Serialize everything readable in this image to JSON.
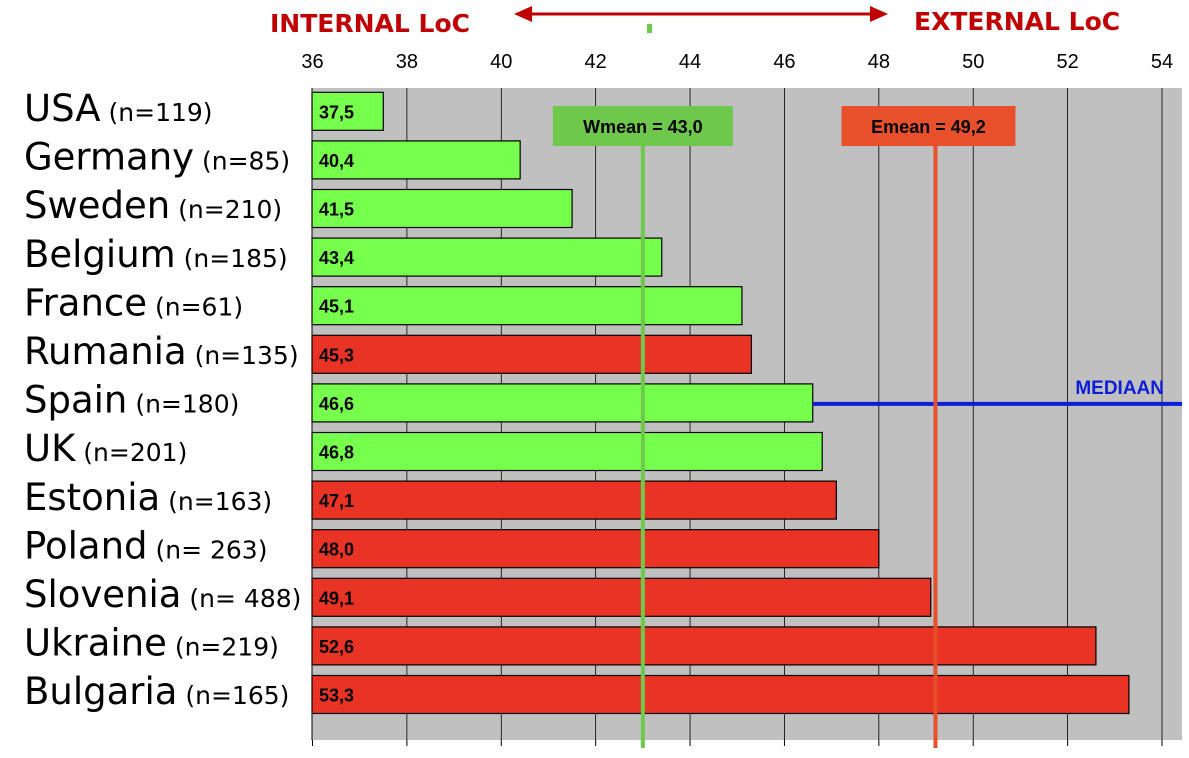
{
  "chart_data": {
    "type": "bar",
    "orientation": "horizontal",
    "categories": [
      "USA",
      "Germany",
      "Sweden",
      "Belgium",
      "France",
      "Rumania",
      "Spain",
      "UK",
      "Estonia",
      "Poland",
      "Slovenia",
      "Ukraine",
      "Bulgaria"
    ],
    "sample_sizes": [
      "(n=119)",
      "(n=85)",
      "(n=210)",
      "(n=185)",
      "(n=61)",
      "(n=135)",
      "(n=180)",
      "(n=201)",
      "(n=163)",
      "(n= 263)",
      "(n= 488)",
      "(n=219)",
      "(n=165)"
    ],
    "values": [
      37.5,
      40.4,
      41.5,
      43.4,
      45.1,
      45.3,
      46.6,
      46.8,
      47.1,
      48.0,
      49.1,
      52.6,
      53.3
    ],
    "value_labels": [
      "37,5",
      "40,4",
      "41,5",
      "43,4",
      "45,1",
      "45,3",
      "46,6",
      "46,8",
      "47,1",
      "48,0",
      "49,1",
      "52,6",
      "53,3"
    ],
    "groups": [
      "W",
      "W",
      "W",
      "W",
      "W",
      "E",
      "W",
      "W",
      "E",
      "E",
      "E",
      "E",
      "E"
    ],
    "group_colors": {
      "W": "#77ff4d",
      "E": "#e93324"
    },
    "xlim": [
      36,
      54
    ],
    "xticks": [
      36,
      38,
      40,
      42,
      44,
      46,
      48,
      50,
      52,
      54
    ],
    "grid": true,
    "plot_background": "#c0c0c0",
    "reference_lines": [
      {
        "label": "Wmean = 43,0",
        "value": 43.0,
        "color": "#6ec84c"
      },
      {
        "label": "Emean = 49,2",
        "value": 49.2,
        "color": "#e8502c"
      }
    ],
    "median": {
      "label": "MEDIAAN",
      "from_value": 46.6,
      "color": "#0d1fd6"
    },
    "axis_annotations": {
      "left": "INTERNAL LoC",
      "right": "EXTERNAL LoC",
      "color": "#c00000"
    }
  }
}
